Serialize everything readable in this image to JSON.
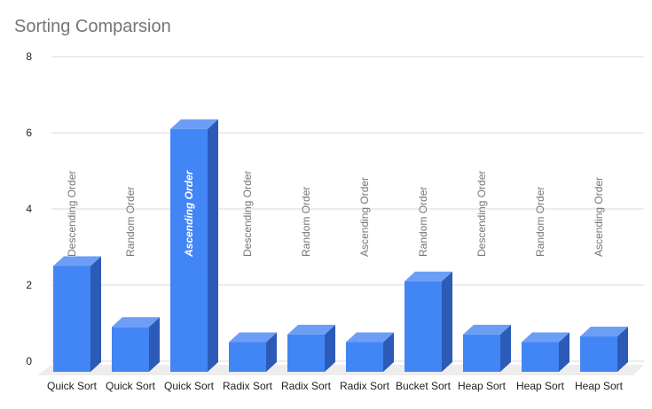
{
  "chart_data": {
    "type": "bar",
    "title": "Sorting Comparsion",
    "xlabel": "",
    "ylabel": "",
    "ylim": [
      0,
      8
    ],
    "yticks": [
      0,
      2,
      4,
      6,
      8
    ],
    "grid": true,
    "legend": "none",
    "style": "3d-bar",
    "categories": [
      "Quick Sort",
      "Quick Sort",
      "Quick Sort",
      "Radix Sort",
      "Radix Sort",
      "Radix Sort",
      "Bucket Sort",
      "Heap Sort",
      "Heap Sort",
      "Heap Sort"
    ],
    "values": [
      2.5,
      0.9,
      6.1,
      0.5,
      0.7,
      0.5,
      2.1,
      0.7,
      0.5,
      0.65
    ],
    "data_labels": [
      "Descending Order",
      "Random Order",
      "Ascending Order",
      "Descending Order",
      "Random Order",
      "Ascending Order",
      "Random Order",
      "Descending Order",
      "Random Order",
      "Ascending Order"
    ],
    "highlighted_label_index": 2,
    "colors": {
      "bar_front": "#4285f4",
      "bar_top": "#6d9ef6",
      "bar_side": "#2b5bb7",
      "grid": "#d9d9d9",
      "floor": "#ededed"
    }
  }
}
